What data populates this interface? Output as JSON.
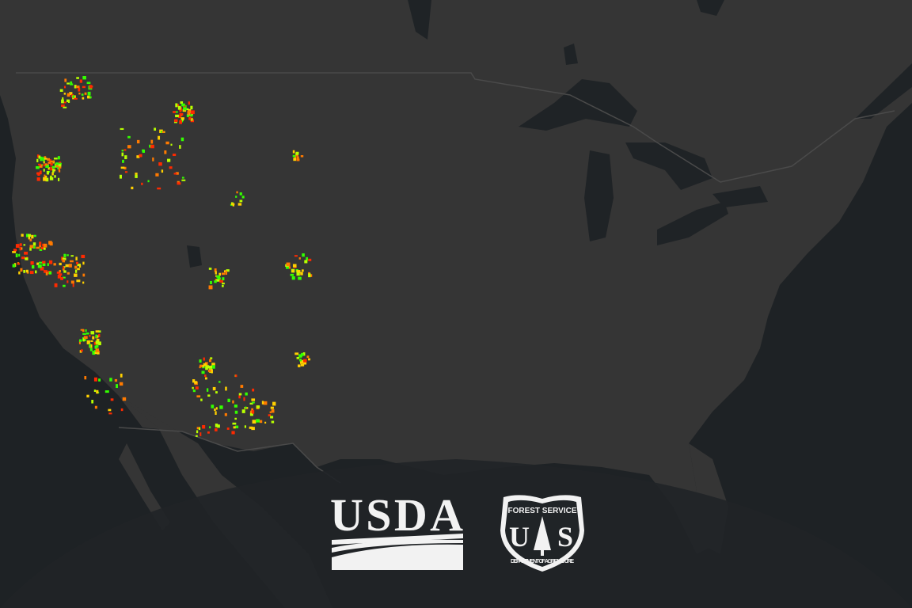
{
  "map": {
    "colors": {
      "water": "#1e2225",
      "land": "#353535",
      "lakes": "#1f2326",
      "borders": "#4a4a4a",
      "overlay": "#202427"
    },
    "fire_colors": [
      "#ff2a00",
      "#ff7a00",
      "#ffd000",
      "#b8ff00",
      "#33ff00"
    ]
  },
  "logos": {
    "usda": {
      "text": "USDA"
    },
    "forest_service": {
      "top_text": "FOREST SERVICE",
      "left": "U",
      "right": "S",
      "bottom_text": "DEPARTMENT OF AGRICULTURE"
    }
  }
}
